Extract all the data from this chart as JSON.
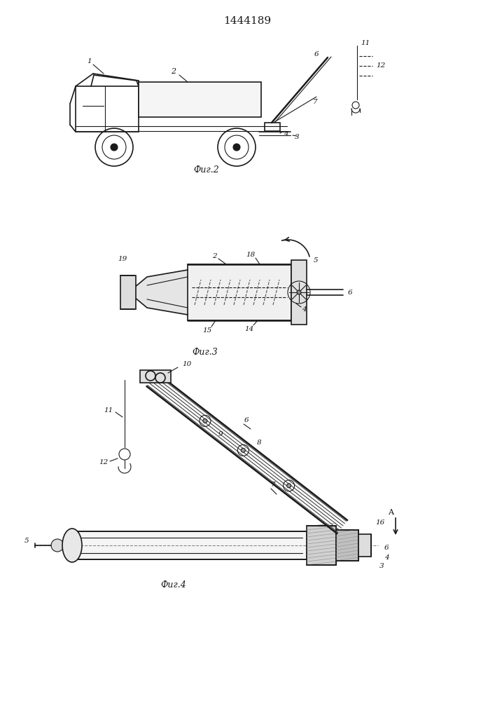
{
  "title": "1444189",
  "title_fontsize": 11,
  "fig2_caption": "Фиг.2",
  "fig3_caption": "Фиг.3",
  "fig4_caption": "Фиг.4",
  "caption_fontsize": 9,
  "bg_color": "#ffffff",
  "line_color": "#1a1a1a",
  "fig_width": 7.07,
  "fig_height": 10.0,
  "dpi": 100
}
